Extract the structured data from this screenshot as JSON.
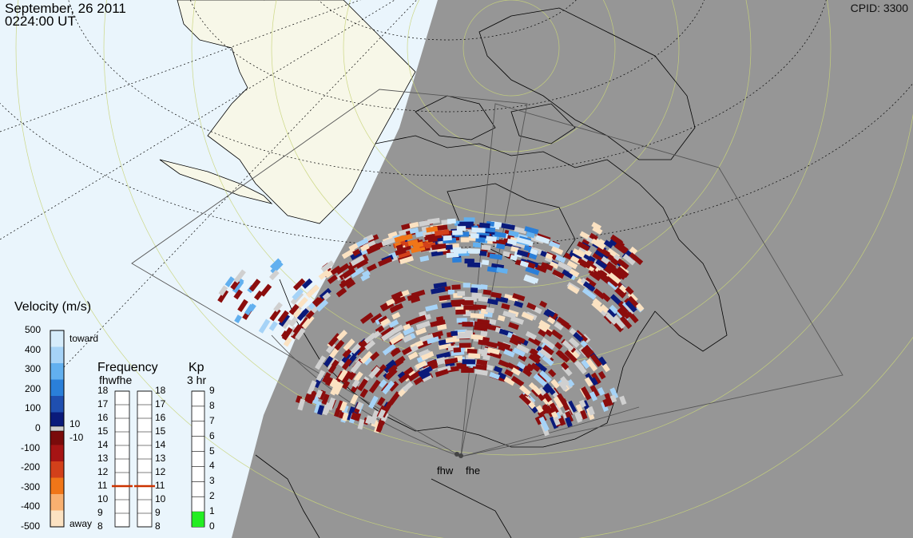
{
  "header": {
    "date": "September, 26 2011",
    "time": "0224:00 UT",
    "cpid": "CPID: 3300"
  },
  "velocity_legend": {
    "title": "Velocity (m/s)",
    "ticks": [
      "500",
      "400",
      "300",
      "200",
      "100",
      "0",
      "-100",
      "-200",
      "-300",
      "-400",
      "-500"
    ],
    "toward": "toward",
    "away": "away",
    "plus10": "10",
    "minus10": "-10",
    "colors": [
      "#d6ecfb",
      "#a6d3f7",
      "#62b0ef",
      "#2a7fd9",
      "#1f4fb0",
      "#0a1a7a",
      "#7a0b0b",
      "#a61414",
      "#d2401a",
      "#f07618",
      "#f8b070",
      "#fbe2c2"
    ]
  },
  "frequency_legend": {
    "title": "Frequency",
    "sub": "fhwfhe",
    "left_ticks": [
      "18",
      "17",
      "16",
      "15",
      "14",
      "13",
      "12",
      "11",
      "10",
      "9",
      "8"
    ],
    "right_ticks": [
      "18",
      "17",
      "16",
      "15",
      "14",
      "13",
      "12",
      "11",
      "10",
      "9",
      "8"
    ],
    "fhw_mhz": 11,
    "fhe_mhz": 11,
    "marker_color": "#cc3300"
  },
  "kp_legend": {
    "title": "Kp",
    "sub": "3 hr",
    "ticks": [
      "9",
      "8",
      "7",
      "6",
      "5",
      "4",
      "3",
      "2",
      "1",
      "0"
    ],
    "value": 1,
    "fill_color": "#22ee22"
  },
  "sites": {
    "fhw": "fhw",
    "fhe": "fhe"
  }
}
